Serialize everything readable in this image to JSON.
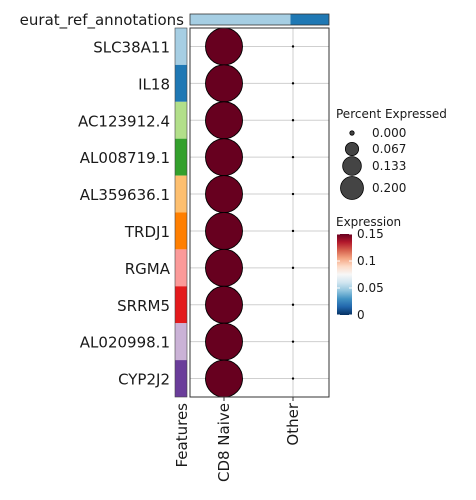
{
  "chart_data": {
    "type": "dotplot",
    "title": "",
    "annotation_header": "eurat_ref_annotations",
    "annotation_colors": [
      "#a6cee3",
      "#1f78b4"
    ],
    "categories": [
      "CD8 Naive",
      "Other"
    ],
    "features": [
      "SLC38A11",
      "IL18",
      "AC123912.4",
      "AL008719.1",
      "AL359636.1",
      "TRDJ1",
      "RGMA",
      "SRRM5",
      "AL020998.1",
      "CYP2J2"
    ],
    "feature_colors": [
      "#a6cee3",
      "#1f78b4",
      "#b2df8a",
      "#33a02c",
      "#fdbf6f",
      "#ff7f00",
      "#fb9a99",
      "#e31a1c",
      "#cab2d6",
      "#6a3d9a"
    ],
    "features_axis_label": "Features",
    "series": [
      {
        "category": "CD8 Naive",
        "percent_expressed": [
          0.2,
          0.2,
          0.2,
          0.2,
          0.2,
          0.2,
          0.2,
          0.2,
          0.2,
          0.2
        ],
        "expression": [
          0.15,
          0.15,
          0.15,
          0.15,
          0.15,
          0.15,
          0.15,
          0.15,
          0.15,
          0.15
        ]
      },
      {
        "category": "Other",
        "percent_expressed": [
          0,
          0,
          0,
          0,
          0,
          0,
          0,
          0,
          0,
          0
        ],
        "expression": [
          0,
          0,
          0,
          0,
          0,
          0,
          0,
          0,
          0,
          0
        ]
      }
    ],
    "size_legend": {
      "title": "Percent Expressed",
      "breaks": [
        0.0,
        0.067,
        0.133,
        0.2
      ],
      "labels": [
        "0.000",
        "0.067",
        "0.133",
        "0.200"
      ],
      "max": 0.2
    },
    "color_legend": {
      "title": "Expression",
      "range": [
        0,
        0.15
      ],
      "ticks": [
        0,
        0.05,
        0.1,
        0.15
      ],
      "tick_labels": [
        "0",
        "0.05",
        "0.1",
        "0.15"
      ],
      "colors": [
        "#053061",
        "#2166ac",
        "#4393c3",
        "#92c5de",
        "#d1e5f0",
        "#f7f7f7",
        "#fddbc7",
        "#f4a582",
        "#d6604d",
        "#b2182b",
        "#67001f"
      ]
    },
    "grid": true
  }
}
